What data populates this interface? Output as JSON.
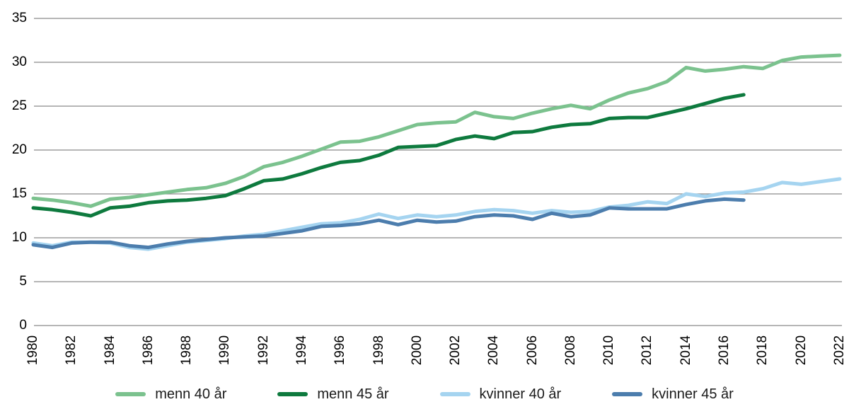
{
  "chart_data": {
    "type": "line",
    "title": "",
    "xlabel": "",
    "ylabel": "",
    "grid": true,
    "legend_position": "bottom",
    "ylim": [
      0,
      35
    ],
    "yticks": [
      35,
      30,
      25,
      20,
      15,
      10,
      5,
      0
    ],
    "xticks": [
      1980,
      1982,
      1984,
      1986,
      1988,
      1990,
      1992,
      1994,
      1996,
      1998,
      2000,
      2002,
      2004,
      2006,
      2008,
      2010,
      2012,
      2014,
      2016,
      2018,
      2020,
      2022
    ],
    "x": [
      1980,
      1981,
      1982,
      1983,
      1984,
      1985,
      1986,
      1987,
      1988,
      1989,
      1990,
      1991,
      1992,
      1993,
      1994,
      1995,
      1996,
      1997,
      1998,
      1999,
      2000,
      2001,
      2002,
      2003,
      2004,
      2005,
      2006,
      2007,
      2008,
      2009,
      2010,
      2011,
      2012,
      2013,
      2014,
      2015,
      2016,
      2017,
      2018,
      2019,
      2020,
      2021,
      2022
    ],
    "series": [
      {
        "name": "menn 40 år",
        "color": "#7bc28e",
        "values": [
          14.5,
          14.3,
          14.0,
          13.6,
          14.4,
          14.6,
          14.9,
          15.2,
          15.5,
          15.7,
          16.2,
          17.0,
          18.1,
          18.6,
          19.3,
          20.1,
          20.9,
          21.0,
          21.5,
          22.2,
          22.9,
          23.1,
          23.2,
          24.3,
          23.8,
          23.6,
          24.2,
          24.7,
          25.1,
          24.7,
          25.7,
          26.5,
          27.0,
          27.8,
          29.4,
          29.0,
          29.2,
          29.5,
          29.3,
          30.2,
          30.6,
          30.7,
          30.8
        ]
      },
      {
        "name": "menn 45 år",
        "color": "#0e7a3e",
        "values": [
          13.4,
          13.2,
          12.9,
          12.5,
          13.4,
          13.6,
          14.0,
          14.2,
          14.3,
          14.5,
          14.8,
          15.6,
          16.5,
          16.7,
          17.3,
          18.0,
          18.6,
          18.8,
          19.4,
          20.3,
          20.4,
          20.5,
          21.2,
          21.6,
          21.3,
          22.0,
          22.1,
          22.6,
          22.9,
          23.0,
          23.6,
          23.7,
          23.7,
          24.2,
          24.7,
          25.3,
          25.9,
          26.3,
          null,
          null,
          null,
          null,
          null
        ]
      },
      {
        "name": "kvinner 40 år",
        "color": "#a5d4f0",
        "values": [
          9.4,
          9.1,
          9.5,
          9.5,
          9.4,
          8.9,
          8.7,
          9.1,
          9.5,
          9.7,
          9.9,
          10.2,
          10.4,
          10.8,
          11.2,
          11.6,
          11.7,
          12.1,
          12.7,
          12.2,
          12.6,
          12.4,
          12.6,
          13.0,
          13.2,
          13.1,
          12.8,
          13.1,
          12.9,
          13.0,
          13.5,
          13.7,
          14.1,
          13.9,
          15.0,
          14.7,
          15.1,
          15.2,
          15.6,
          16.3,
          16.1,
          16.4,
          16.7
        ]
      },
      {
        "name": "kvinner 45 år",
        "color": "#4c7dad",
        "values": [
          9.2,
          8.9,
          9.4,
          9.5,
          9.5,
          9.1,
          8.9,
          9.3,
          9.6,
          9.8,
          10.0,
          10.1,
          10.2,
          10.5,
          10.8,
          11.3,
          11.4,
          11.6,
          12.0,
          11.5,
          12.0,
          11.8,
          11.9,
          12.4,
          12.6,
          12.5,
          12.1,
          12.8,
          12.4,
          12.6,
          13.4,
          13.3,
          13.3,
          13.3,
          13.8,
          14.2,
          14.4,
          14.3,
          null,
          null,
          null,
          null,
          null
        ]
      }
    ],
    "gridline_color": "#8a8a8a"
  }
}
